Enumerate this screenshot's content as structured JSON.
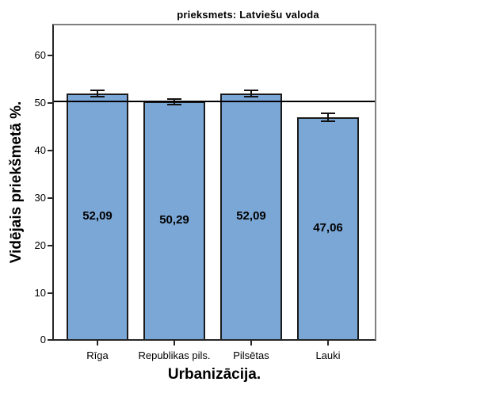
{
  "chart_data": {
    "type": "bar",
    "title": "prieksmets: Latviešu valoda",
    "xlabel": "Urbanizācija.",
    "ylabel": "Vidējais priekšmetā %.",
    "categories": [
      "Rīga",
      "Republikas pils.",
      "Pilsētas",
      "Lauki"
    ],
    "values": [
      52.09,
      50.29,
      52.09,
      47.06
    ],
    "value_labels": [
      "52,09",
      "50,29",
      "52,09",
      "47,06"
    ],
    "error_margins": [
      0.7,
      0.6,
      0.7,
      0.8
    ],
    "reference_line": 50.4,
    "yticks": [
      0,
      10,
      20,
      30,
      40,
      50,
      60
    ],
    "ylim": [
      0,
      66.6
    ],
    "grid": false,
    "legend": null,
    "bar_color": "#7BA7D6",
    "bar_border_color": "#1a1a1a",
    "error_bar_color": "#111111",
    "reference_line_color": "#000000",
    "axis_dark_color": "#262626",
    "frame_light_color": "#808080"
  }
}
